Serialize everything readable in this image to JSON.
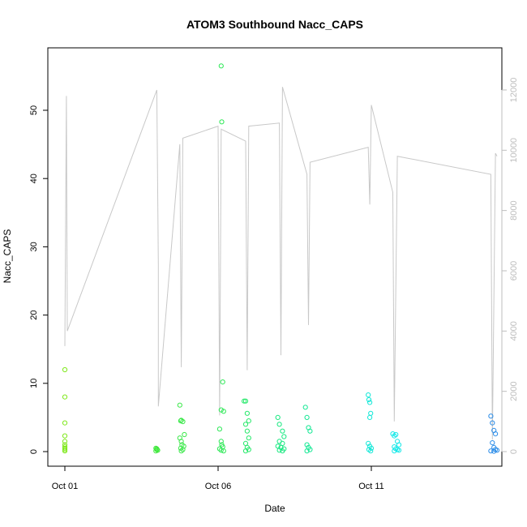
{
  "chart_data": {
    "type": "scatter",
    "title": "ATOM3 Southbound Nacc_CAPS",
    "xlabel": "Date",
    "ylabel": "Nacc_CAPS",
    "x_ticks": [
      "Oct 01",
      "Oct 06",
      "Oct 11"
    ],
    "x_tick_days": [
      1,
      6,
      11
    ],
    "xlim_days": [
      0.65,
      15.85
    ],
    "ylim": [
      -2,
      58
    ],
    "y_ticks": [
      0,
      10,
      20,
      30,
      40,
      50
    ],
    "y2lim": [
      -100,
      12300
    ],
    "y2_ticks": [
      0,
      2000,
      4000,
      6000,
      8000,
      10000,
      12000
    ],
    "grid": false,
    "legend": "none",
    "colors": {
      "secondary_line": "#c8c8c8",
      "frame": "#000000",
      "secondary_axis": "#bdbdbd"
    },
    "secondary_series": {
      "name": "",
      "points": [
        [
          1.0,
          3500
        ],
        [
          1.05,
          11800
        ],
        [
          1.08,
          4000
        ],
        [
          4.0,
          12000
        ],
        [
          4.05,
          6200
        ],
        [
          4.05,
          1500
        ],
        [
          4.75,
          10200
        ],
        [
          4.8,
          2800
        ],
        [
          4.85,
          10400
        ],
        [
          6.0,
          10800
        ],
        [
          6.05,
          1200
        ],
        [
          6.1,
          10700
        ],
        [
          6.9,
          10300
        ],
        [
          6.95,
          2700
        ],
        [
          7.0,
          10800
        ],
        [
          8.0,
          10900
        ],
        [
          8.05,
          3200
        ],
        [
          8.1,
          12100
        ],
        [
          8.9,
          9200
        ],
        [
          8.95,
          4200
        ],
        [
          9.0,
          9600
        ],
        [
          10.9,
          10100
        ],
        [
          10.95,
          8200
        ],
        [
          11.0,
          11500
        ],
        [
          11.7,
          8600
        ],
        [
          11.75,
          1000
        ],
        [
          11.85,
          9800
        ],
        [
          14.9,
          9200
        ],
        [
          14.95,
          400
        ],
        [
          15.05,
          9900
        ],
        [
          15.1,
          9800
        ]
      ]
    },
    "series": [
      {
        "name": "",
        "color": "#7ee81a",
        "x": [
          1.0,
          1.0,
          1.0,
          1.0,
          1.0,
          1.0,
          1.0,
          1.0,
          1.0,
          1.0
        ],
        "y": [
          12.0,
          8.0,
          4.2,
          2.3,
          1.5,
          1.0,
          0.7,
          0.5,
          0.3,
          0.1
        ]
      },
      {
        "name": "",
        "color": "#3de83a",
        "x": [
          3.97,
          4.0,
          4.03,
          3.97,
          4.0
        ],
        "y": [
          0.5,
          0.3,
          0.2,
          0.1,
          0.4
        ]
      },
      {
        "name": "",
        "color": "#3be84a",
        "x": [
          4.75,
          4.78,
          4.8,
          4.85,
          4.9,
          4.75,
          4.8,
          4.82,
          4.88,
          4.78,
          4.85,
          4.8
        ],
        "y": [
          6.8,
          4.5,
          4.6,
          4.4,
          2.5,
          2.0,
          1.5,
          1.0,
          0.8,
          0.5,
          0.3,
          0.1
        ]
      },
      {
        "name": "",
        "color": "#2de856",
        "x": [
          6.1,
          6.12,
          6.15,
          6.1,
          6.18,
          6.05,
          6.1,
          6.12,
          6.15,
          6.05,
          6.1,
          6.18
        ],
        "y": [
          56.5,
          48.3,
          10.2,
          6.1,
          5.9,
          3.3,
          1.5,
          1.0,
          0.7,
          0.4,
          0.2,
          0.1
        ]
      },
      {
        "name": "",
        "color": "#26e86a",
        "x": [
          6.85,
          6.9,
          6.95,
          7.0,
          6.9,
          6.95,
          7.0,
          6.9,
          6.95,
          7.0,
          6.9
        ],
        "y": [
          7.4,
          7.4,
          5.6,
          4.5,
          4.0,
          3.0,
          2.0,
          1.2,
          0.6,
          0.3,
          0.1
        ]
      },
      {
        "name": "",
        "color": "#18e880",
        "x": [
          7.95,
          8.0,
          8.1,
          8.15,
          8.0,
          8.1,
          7.95,
          8.05,
          8.15,
          8.0,
          8.1
        ],
        "y": [
          5.0,
          4.0,
          3.0,
          2.2,
          1.5,
          1.2,
          0.8,
          0.6,
          0.4,
          0.2,
          0.1
        ]
      },
      {
        "name": "",
        "color": "#14e894",
        "x": [
          8.85,
          8.9,
          8.95,
          9.0,
          8.9,
          8.95,
          9.0,
          8.9
        ],
        "y": [
          6.5,
          5.0,
          3.5,
          3.0,
          1.0,
          0.6,
          0.3,
          0.1
        ]
      },
      {
        "name": "",
        "color": "#14e8d8",
        "x": [
          10.9,
          10.92,
          10.95,
          10.98,
          10.95,
          10.9,
          10.95,
          11.0,
          10.92,
          10.98
        ],
        "y": [
          8.3,
          7.6,
          7.2,
          5.6,
          5.0,
          1.2,
          0.8,
          0.5,
          0.3,
          0.1
        ]
      },
      {
        "name": "",
        "color": "#14e8e8",
        "x": [
          11.7,
          11.75,
          11.8,
          11.85,
          11.9,
          11.75,
          11.8,
          11.85,
          11.9,
          11.75
        ],
        "y": [
          2.6,
          2.3,
          2.5,
          1.5,
          1.0,
          0.7,
          0.4,
          0.3,
          0.2,
          0.1
        ]
      },
      {
        "name": "",
        "color": "#2a8ce8",
        "x": [
          14.9,
          14.95,
          15.0,
          15.05,
          14.95,
          15.0,
          15.05,
          15.1,
          14.9,
          15.0
        ],
        "y": [
          5.2,
          4.2,
          3.1,
          2.6,
          1.3,
          0.6,
          0.3,
          0.2,
          0.1,
          0.05
        ]
      }
    ]
  }
}
